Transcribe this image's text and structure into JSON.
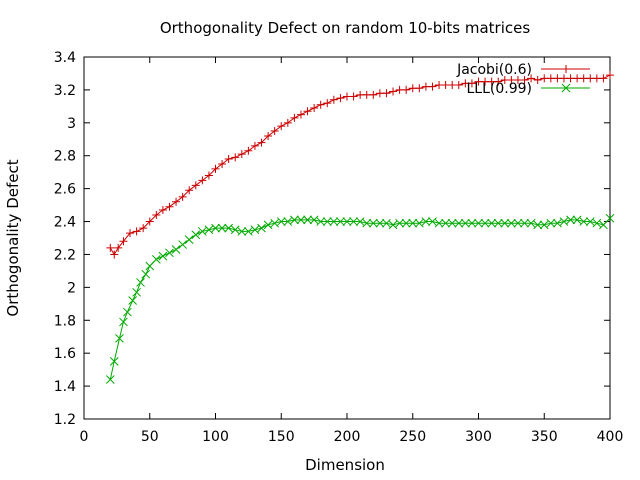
{
  "chart_data": {
    "type": "line",
    "title": "Orthogonality Defect on random 10-bits matrices",
    "xlabel": "Dimension",
    "ylabel": "Orthogonality Defect",
    "xlim": [
      0,
      400
    ],
    "ylim": [
      1.2,
      3.4
    ],
    "xticks": [
      "0",
      "50",
      "100",
      "150",
      "200",
      "250",
      "300",
      "350",
      "400"
    ],
    "yticks": [
      "1.2",
      "1.4",
      "1.6",
      "1.8",
      "2",
      "2.2",
      "2.4",
      "2.6",
      "2.8",
      "3",
      "3.2",
      "3.4"
    ],
    "grid": false,
    "legend_position": "top-right",
    "series": [
      {
        "name": "Jacobi(0.6)",
        "color": "#cc0000",
        "marker": "plus",
        "x": [
          20,
          23,
          26,
          30,
          35,
          40,
          45,
          50,
          55,
          60,
          65,
          70,
          75,
          80,
          85,
          90,
          95,
          100,
          105,
          110,
          115,
          120,
          125,
          130,
          135,
          140,
          145,
          150,
          155,
          160,
          165,
          170,
          175,
          180,
          185,
          190,
          195,
          200,
          205,
          210,
          215,
          220,
          225,
          230,
          235,
          240,
          245,
          250,
          255,
          260,
          265,
          270,
          275,
          280,
          285,
          290,
          295,
          300,
          305,
          310,
          315,
          320,
          325,
          330,
          335,
          340,
          345,
          350,
          355,
          360,
          365,
          370,
          375,
          380,
          385,
          390,
          395,
          400
        ],
        "y": [
          2.24,
          2.2,
          2.24,
          2.28,
          2.33,
          2.34,
          2.36,
          2.4,
          2.44,
          2.47,
          2.49,
          2.52,
          2.55,
          2.59,
          2.62,
          2.65,
          2.68,
          2.72,
          2.75,
          2.78,
          2.79,
          2.81,
          2.83,
          2.86,
          2.88,
          2.92,
          2.95,
          2.98,
          3.0,
          3.03,
          3.05,
          3.07,
          3.09,
          3.11,
          3.12,
          3.14,
          3.15,
          3.16,
          3.16,
          3.17,
          3.17,
          3.17,
          3.18,
          3.18,
          3.19,
          3.2,
          3.2,
          3.21,
          3.21,
          3.22,
          3.22,
          3.23,
          3.23,
          3.23,
          3.23,
          3.24,
          3.24,
          3.25,
          3.25,
          3.25,
          3.25,
          3.26,
          3.26,
          3.26,
          3.26,
          3.27,
          3.26,
          3.27,
          3.27,
          3.27,
          3.27,
          3.27,
          3.27,
          3.27,
          3.27,
          3.27,
          3.27,
          3.29
        ]
      },
      {
        "name": "LLL(0.99)",
        "color": "#00aa00",
        "marker": "cross",
        "x": [
          20,
          23,
          27,
          30,
          33,
          37,
          40,
          43,
          47,
          50,
          55,
          60,
          65,
          70,
          75,
          80,
          85,
          90,
          95,
          100,
          105,
          110,
          115,
          120,
          125,
          130,
          135,
          140,
          145,
          150,
          155,
          160,
          165,
          170,
          175,
          180,
          185,
          190,
          195,
          200,
          205,
          210,
          215,
          220,
          225,
          230,
          235,
          240,
          245,
          250,
          255,
          260,
          265,
          270,
          275,
          280,
          285,
          290,
          295,
          300,
          305,
          310,
          315,
          320,
          325,
          330,
          335,
          340,
          345,
          350,
          355,
          360,
          365,
          370,
          375,
          380,
          385,
          390,
          395,
          400
        ],
        "y": [
          1.44,
          1.55,
          1.69,
          1.79,
          1.85,
          1.92,
          1.97,
          2.03,
          2.08,
          2.13,
          2.17,
          2.19,
          2.21,
          2.23,
          2.26,
          2.29,
          2.32,
          2.34,
          2.35,
          2.36,
          2.36,
          2.36,
          2.35,
          2.34,
          2.34,
          2.35,
          2.36,
          2.38,
          2.39,
          2.4,
          2.4,
          2.41,
          2.41,
          2.41,
          2.41,
          2.4,
          2.4,
          2.4,
          2.4,
          2.4,
          2.4,
          2.4,
          2.39,
          2.39,
          2.39,
          2.39,
          2.38,
          2.39,
          2.39,
          2.39,
          2.39,
          2.4,
          2.4,
          2.39,
          2.39,
          2.39,
          2.39,
          2.39,
          2.39,
          2.39,
          2.39,
          2.39,
          2.39,
          2.39,
          2.39,
          2.39,
          2.39,
          2.39,
          2.38,
          2.38,
          2.39,
          2.39,
          2.4,
          2.41,
          2.41,
          2.4,
          2.4,
          2.39,
          2.38,
          2.42
        ]
      }
    ]
  }
}
